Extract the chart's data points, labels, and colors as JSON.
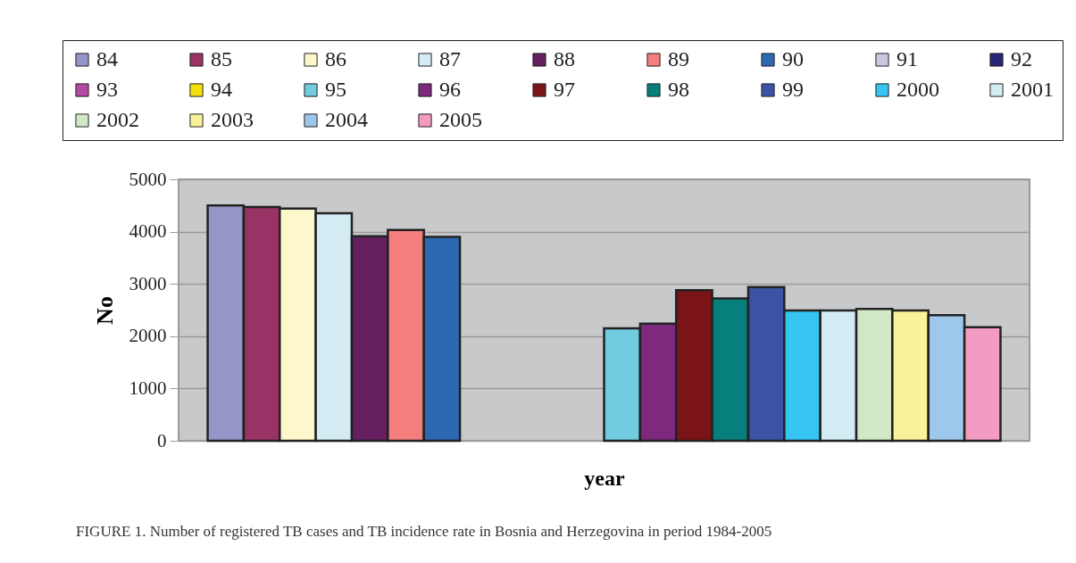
{
  "chart_data": {
    "type": "bar",
    "xlabel": "year",
    "ylabel": "No",
    "categories": [
      null
    ],
    "series": [
      {
        "name": "84",
        "color": "#9595c8",
        "values": [
          4500
        ]
      },
      {
        "name": "85",
        "color": "#993366",
        "values": [
          4470
        ]
      },
      {
        "name": "86",
        "color": "#fcf8cc",
        "values": [
          4440
        ]
      },
      {
        "name": "87",
        "color": "#d3ecf4",
        "values": [
          4350
        ]
      },
      {
        "name": "88",
        "color": "#651f5f",
        "values": [
          3910
        ]
      },
      {
        "name": "89",
        "color": "#f47d7d",
        "values": [
          4030
        ]
      },
      {
        "name": "90",
        "color": "#2d68b3",
        "values": [
          3900
        ]
      },
      {
        "name": "91",
        "color": "#cdc6e2",
        "values": [
          null
        ]
      },
      {
        "name": "92",
        "color": "#262673",
        "values": [
          null
        ]
      },
      {
        "name": "93",
        "color": "#b44aa1",
        "values": [
          null
        ]
      },
      {
        "name": "94",
        "color": "#f5e10a",
        "values": [
          null
        ]
      },
      {
        "name": "95",
        "color": "#72cce0",
        "values": [
          2150
        ]
      },
      {
        "name": "96",
        "color": "#7d297d",
        "values": [
          2240
        ]
      },
      {
        "name": "97",
        "color": "#7b1416",
        "values": [
          2880
        ]
      },
      {
        "name": "98",
        "color": "#07807d",
        "values": [
          2720
        ]
      },
      {
        "name": "99",
        "color": "#3a53a5",
        "values": [
          2940
        ]
      },
      {
        "name": "2000",
        "color": "#36c5f2",
        "values": [
          2490
        ]
      },
      {
        "name": "2001",
        "color": "#d3ecf4",
        "values": [
          2490
        ]
      },
      {
        "name": "2002",
        "color": "#d1e8c6",
        "values": [
          2520
        ]
      },
      {
        "name": "2003",
        "color": "#faf29b",
        "values": [
          2490
        ]
      },
      {
        "name": "2004",
        "color": "#9ec8eb",
        "values": [
          2400
        ]
      },
      {
        "name": "2005",
        "color": "#f49bc1",
        "values": [
          2170
        ]
      }
    ],
    "ylim": [
      0,
      5000
    ],
    "yticks": [
      0,
      1000,
      2000,
      3000,
      4000,
      5000
    ],
    "grid": "y",
    "legend": "top",
    "tick_labels": "y",
    "annotations": [
      "FIGURE 1. Number of registered TB cases and TB incidence rate in Bosnia and Herzegovina in period 1984-2005"
    ]
  }
}
